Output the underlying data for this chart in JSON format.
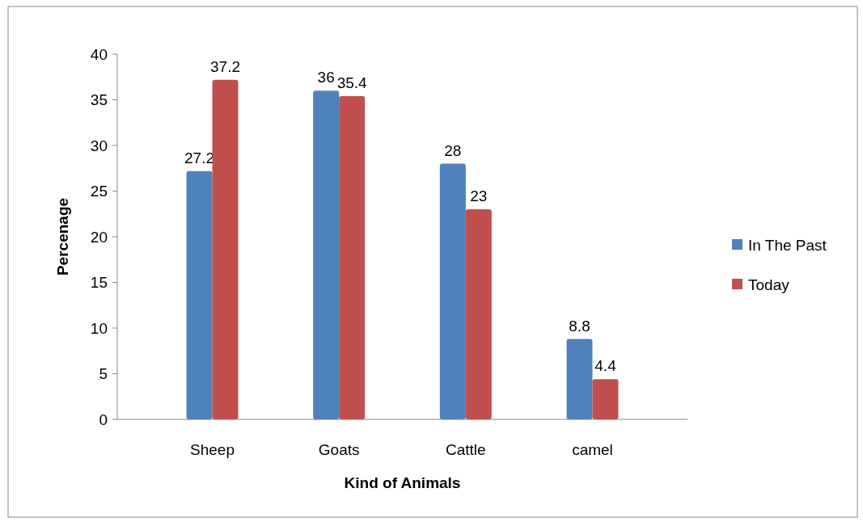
{
  "chart_data": {
    "type": "bar",
    "xlabel": "Kind of Animals",
    "ylabel": "Percenage",
    "categories": [
      "Sheep",
      "Goats",
      "Cattle",
      "camel"
    ],
    "series": [
      {
        "name": "In The Past",
        "color": "#4f81bd",
        "values": [
          27.2,
          36,
          28,
          8.8
        ]
      },
      {
        "name": "Today",
        "color": "#c0504d",
        "values": [
          37.2,
          35.4,
          23,
          4.4
        ]
      }
    ],
    "ylim": [
      0,
      40
    ],
    "yticks": [
      0,
      5,
      10,
      15,
      20,
      25,
      30,
      35,
      40
    ],
    "data_labels": true,
    "legend": "right",
    "grid": false
  }
}
